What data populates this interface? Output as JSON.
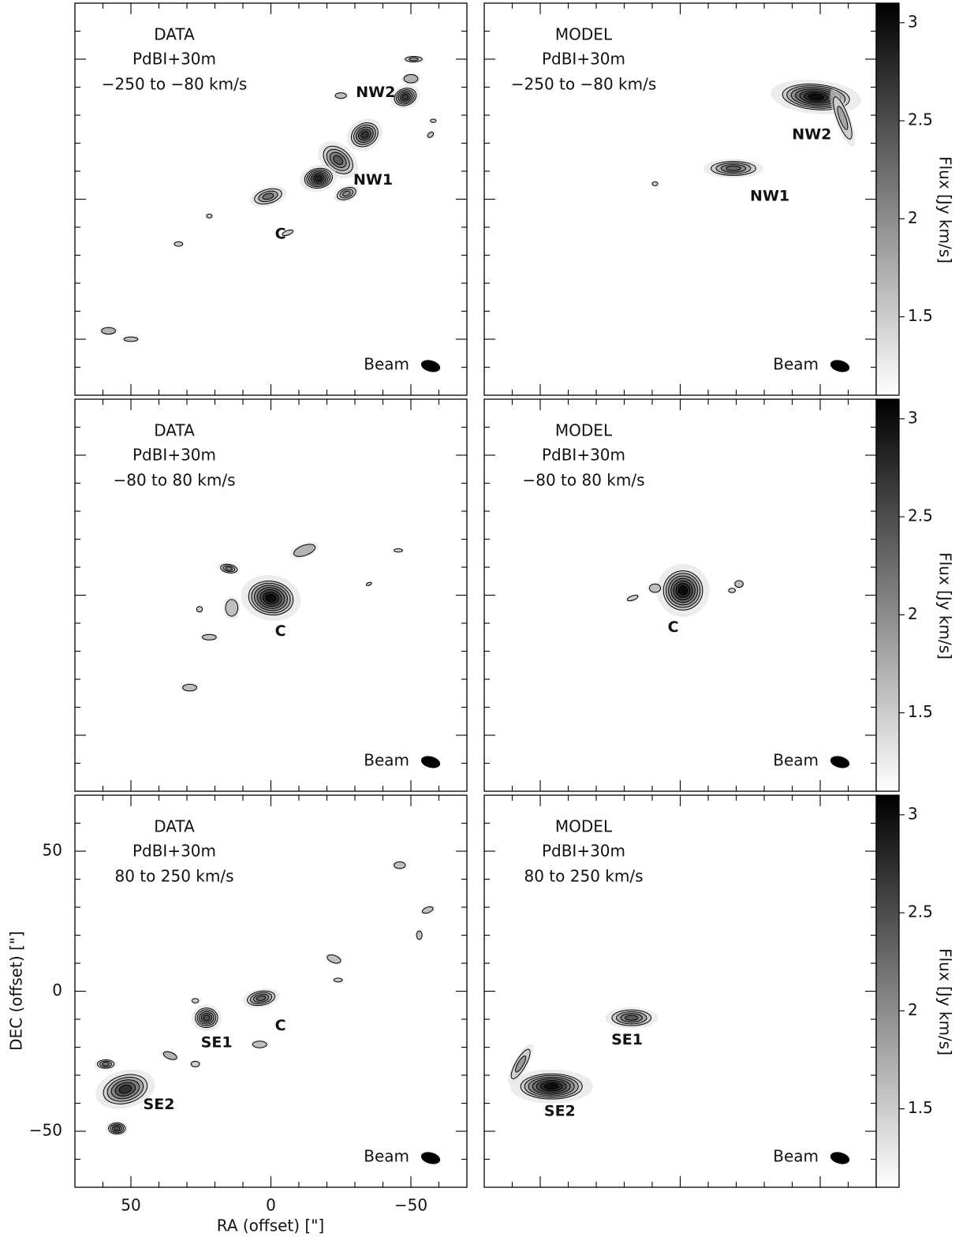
{
  "chart_data": {
    "type": "contour",
    "xlabel": "RA (offset) [\"]",
    "ylabel": "DEC (offset) [\"]",
    "xlim": [
      70,
      -70
    ],
    "ylim": [
      -70,
      70
    ],
    "xticks": [
      50,
      0,
      {
        "value": -50,
        "label": "−50"
      }
    ],
    "yticks": [
      50,
      0,
      {
        "value": -50,
        "label": "−50"
      }
    ],
    "xminor": [
      60,
      40,
      30,
      20,
      10,
      -10,
      -20,
      -30,
      -40,
      -60
    ],
    "yminor": [
      60,
      40,
      30,
      20,
      10,
      -10,
      -20,
      -30,
      -40,
      -60
    ],
    "colorbar": {
      "label": "Flux [Jy km/s]",
      "lim": [
        1.1,
        3.1
      ],
      "ticks": [
        1.5,
        2,
        2.5,
        3
      ]
    },
    "beam_label": "Beam",
    "beam": {
      "major": 7,
      "minor": 4,
      "angle": -15
    },
    "panels": [
      {
        "kind": "DATA",
        "config": "PdBI+30m",
        "velocity": "−250 to −80 km/s",
        "colorbar": false,
        "sources": [
          {
            "x": -48,
            "y": 36.5,
            "rx": 4,
            "ry": 3,
            "angle": 20,
            "peak": 2.6
          },
          {
            "x": -33.5,
            "y": 23,
            "rx": 5,
            "ry": 4,
            "angle": 30,
            "peak": 2.7
          },
          {
            "x": -51,
            "y": 50,
            "rx": 3,
            "ry": 1,
            "angle": 0,
            "peak": 1.9
          },
          {
            "x": -50,
            "y": 43,
            "rx": 2.5,
            "ry": 1.5,
            "angle": 0,
            "peak": 1.7
          },
          {
            "x": -25,
            "y": 37,
            "rx": 2,
            "ry": 1,
            "angle": 0,
            "peak": 1.6
          },
          {
            "x": -24,
            "y": 14,
            "rx": 6,
            "ry": 4,
            "angle": -40,
            "peak": 2.4
          },
          {
            "x": -17,
            "y": 7.5,
            "rx": 5,
            "ry": 3.5,
            "angle": 10,
            "peak": 2.8
          },
          {
            "x": -27,
            "y": 2,
            "rx": 3.5,
            "ry": 2,
            "angle": 20,
            "peak": 2.0
          },
          {
            "x": 1,
            "y": 1,
            "rx": 5,
            "ry": 2.5,
            "angle": 15,
            "peak": 2.2
          },
          {
            "x": -6,
            "y": -12,
            "rx": 2,
            "ry": 0.8,
            "angle": 20,
            "peak": 1.5
          },
          {
            "x": 33,
            "y": -16,
            "rx": 1.5,
            "ry": 0.8,
            "angle": 0,
            "peak": 1.5
          },
          {
            "x": 22,
            "y": -6,
            "rx": 1,
            "ry": 0.7,
            "angle": 0,
            "peak": 1.5
          },
          {
            "x": 58,
            "y": -47,
            "rx": 2.5,
            "ry": 1.2,
            "angle": 0,
            "peak": 1.7
          },
          {
            "x": 50,
            "y": -50,
            "rx": 2.5,
            "ry": 0.8,
            "angle": 0,
            "peak": 1.6
          },
          {
            "x": -58,
            "y": 28,
            "rx": 1,
            "ry": 0.6,
            "angle": 0,
            "peak": 1.5
          },
          {
            "x": -57,
            "y": 23,
            "rx": 1.2,
            "ry": 0.8,
            "angle": 40,
            "peak": 1.6
          }
        ],
        "labels": [
          {
            "text": "NW2",
            "x": -37.4,
            "y": 38
          },
          {
            "text": "NW1",
            "x": -36.5,
            "y": 6.7
          },
          {
            "text": "C",
            "x": -3.4,
            "y": -12.6
          }
        ]
      },
      {
        "kind": "MODEL",
        "config": "PdBI+30m",
        "velocity": "−250 to −80 km/s",
        "colorbar": true,
        "sources": [
          {
            "x": -48.5,
            "y": 36.5,
            "rx": 12,
            "ry": 4.5,
            "angle": -5,
            "peak": 3.0
          },
          {
            "x": -58,
            "y": 29,
            "rx": 8,
            "ry": 2,
            "angle": -70,
            "peak": 1.8
          },
          {
            "x": -19,
            "y": 11,
            "rx": 8,
            "ry": 2.5,
            "angle": 0,
            "peak": 2.3
          },
          {
            "x": 9,
            "y": 5.5,
            "rx": 1,
            "ry": 0.7,
            "angle": 0,
            "peak": 1.5
          }
        ],
        "labels": [
          {
            "text": "NW2",
            "x": -47,
            "y": 23
          },
          {
            "text": "NW1",
            "x": -32,
            "y": 1
          }
        ]
      },
      {
        "kind": "DATA",
        "config": "PdBI+30m",
        "velocity": "−80 to 80 km/s",
        "colorbar": false,
        "sources": [
          {
            "x": 0,
            "y": -1,
            "rx": 8,
            "ry": 6,
            "angle": -10,
            "peak": 3.0
          },
          {
            "x": 15,
            "y": 9.5,
            "rx": 3,
            "ry": 1.5,
            "angle": -10,
            "peak": 2.1
          },
          {
            "x": -12,
            "y": 16,
            "rx": 4,
            "ry": 1.8,
            "angle": 20,
            "peak": 1.7
          },
          {
            "x": 14,
            "y": -4.5,
            "rx": 2.2,
            "ry": 3,
            "angle": 0,
            "peak": 1.6
          },
          {
            "x": 22,
            "y": -15,
            "rx": 2.5,
            "ry": 1,
            "angle": 0,
            "peak": 1.6
          },
          {
            "x": 29,
            "y": -33,
            "rx": 2.5,
            "ry": 1.2,
            "angle": 0,
            "peak": 1.6
          },
          {
            "x": 25.5,
            "y": -5,
            "rx": 1,
            "ry": 1,
            "angle": 0,
            "peak": 1.5
          },
          {
            "x": -35,
            "y": 4,
            "rx": 1,
            "ry": 0.5,
            "angle": 20,
            "peak": 1.5
          },
          {
            "x": -45.5,
            "y": 16,
            "rx": 1.5,
            "ry": 0.6,
            "angle": 0,
            "peak": 1.5
          }
        ],
        "labels": [
          {
            "text": "C",
            "x": -3.4,
            "y": -13
          }
        ]
      },
      {
        "kind": "MODEL",
        "config": "PdBI+30m",
        "velocity": "−80 to 80 km/s",
        "colorbar": true,
        "sources": [
          {
            "x": -1,
            "y": 1.7,
            "rx": 7,
            "ry": 7,
            "angle": 0,
            "peak": 3.0
          },
          {
            "x": 9,
            "y": 2.5,
            "rx": 2,
            "ry": 1.5,
            "angle": 0,
            "peak": 1.6
          },
          {
            "x": 17,
            "y": -1,
            "rx": 2,
            "ry": 0.8,
            "angle": 20,
            "peak": 1.5
          },
          {
            "x": -21,
            "y": 4,
            "rx": 1.5,
            "ry": 1.2,
            "angle": 0,
            "peak": 1.6
          },
          {
            "x": -18.5,
            "y": 1.7,
            "rx": 1.2,
            "ry": 0.8,
            "angle": 0,
            "peak": 1.5
          }
        ],
        "labels": [
          {
            "text": "C",
            "x": 2.5,
            "y": -11.5
          }
        ]
      },
      {
        "kind": "DATA",
        "config": "PdBI+30m",
        "velocity": "80 to 250 km/s",
        "colorbar": false,
        "sources": [
          {
            "x": 23,
            "y": -9.5,
            "rx": 4,
            "ry": 3.5,
            "angle": 0,
            "peak": 2.5
          },
          {
            "x": 3.5,
            "y": -2.5,
            "rx": 5,
            "ry": 2.5,
            "angle": 10,
            "peak": 2.3
          },
          {
            "x": 52,
            "y": -35,
            "rx": 8,
            "ry": 5,
            "angle": 15,
            "peak": 2.7
          },
          {
            "x": 59,
            "y": -26,
            "rx": 3,
            "ry": 1.5,
            "angle": 0,
            "peak": 2.1
          },
          {
            "x": 55,
            "y": -49,
            "rx": 3,
            "ry": 2,
            "angle": 0,
            "peak": 2.4
          },
          {
            "x": 36,
            "y": -23,
            "rx": 2.5,
            "ry": 1.2,
            "angle": -20,
            "peak": 1.7
          },
          {
            "x": 27,
            "y": -26,
            "rx": 1.5,
            "ry": 1,
            "angle": 0,
            "peak": 1.5
          },
          {
            "x": 4,
            "y": -19,
            "rx": 2.5,
            "ry": 1.2,
            "angle": 0,
            "peak": 1.6
          },
          {
            "x": -22.5,
            "y": 11.5,
            "rx": 2.5,
            "ry": 1.3,
            "angle": -20,
            "peak": 1.6
          },
          {
            "x": -24,
            "y": 4,
            "rx": 1.5,
            "ry": 0.7,
            "angle": 0,
            "peak": 1.5
          },
          {
            "x": -46,
            "y": 45,
            "rx": 2,
            "ry": 1.2,
            "angle": 0,
            "peak": 1.6
          },
          {
            "x": -56,
            "y": 29,
            "rx": 2,
            "ry": 1,
            "angle": 20,
            "peak": 1.6
          },
          {
            "x": -53,
            "y": 20,
            "rx": 1,
            "ry": 1.5,
            "angle": 0,
            "peak": 1.6
          },
          {
            "x": 27,
            "y": -3.4,
            "rx": 1.2,
            "ry": 0.8,
            "angle": 0,
            "peak": 1.5
          }
        ],
        "labels": [
          {
            "text": "SE1",
            "x": 19.4,
            "y": -18.5
          },
          {
            "text": "C",
            "x": -3.4,
            "y": -12.4
          },
          {
            "text": "SE2",
            "x": 40,
            "y": -40.5
          }
        ]
      },
      {
        "kind": "MODEL",
        "config": "PdBI+30m",
        "velocity": "80 to 250 km/s",
        "colorbar": true,
        "sources": [
          {
            "x": 46,
            "y": -34,
            "rx": 11,
            "ry": 4.5,
            "angle": 0,
            "peak": 3.0
          },
          {
            "x": 57,
            "y": -26,
            "rx": 6,
            "ry": 1.8,
            "angle": 60,
            "peak": 1.9
          },
          {
            "x": 17.4,
            "y": -9.5,
            "rx": 7,
            "ry": 2.8,
            "angle": 0,
            "peak": 2.4
          }
        ],
        "labels": [
          {
            "text": "SE1",
            "x": 19,
            "y": -17.4
          },
          {
            "text": "SE2",
            "x": 43,
            "y": -43
          }
        ]
      }
    ]
  }
}
